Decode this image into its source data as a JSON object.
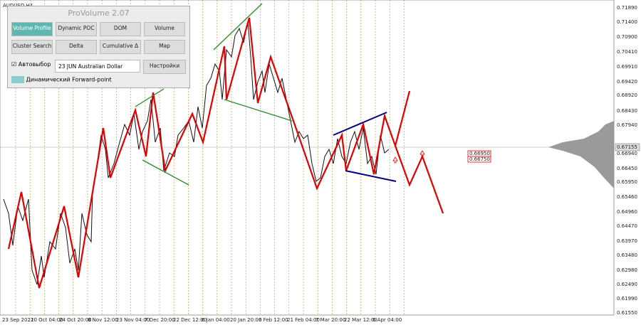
{
  "symbol": "AUDUSD,H4",
  "panel": {
    "title": "ProVolume 2.07",
    "buttons": [
      "Volume Profile",
      "Dynamic POC",
      "DOM",
      "Volume",
      "Cluster Search",
      "Delta",
      "Cumulative Δ",
      "Map"
    ],
    "auto_select": "Автовыбор",
    "instrument": "23 JUN Australian Dollar",
    "settings": "Настройки",
    "forward_point": "Динамический Forward-point"
  },
  "price_axis": [
    "0.71890",
    "0.71400",
    "0.70900",
    "0.70410",
    "0.69910",
    "0.69420",
    "0.68920",
    "0.68430",
    "0.67940",
    "0.67155",
    "0.66940",
    "0.66450",
    "0.65950",
    "0.65460",
    "0.64960",
    "0.64470",
    "0.63970",
    "0.63480",
    "0.62980",
    "0.62490",
    "0.61990",
    "0.61550"
  ],
  "time_axis": [
    "23 Sep 2022",
    "10 Oct 04:00",
    "24 Oct 20:00",
    "8 Nov 12:00",
    "23 Nov 04:00",
    "7 Dec 20:00",
    "22 Dec 12:00",
    "6 Jan 04:00",
    "20 Jan 20:00",
    "6 Feb 12:00",
    "21 Feb 04:00",
    "7 Mar 20:00",
    "22 Mar 12:00",
    "6 Apr 04:00"
  ],
  "level_labels": [
    "0.66950",
    "0.66750"
  ]
}
